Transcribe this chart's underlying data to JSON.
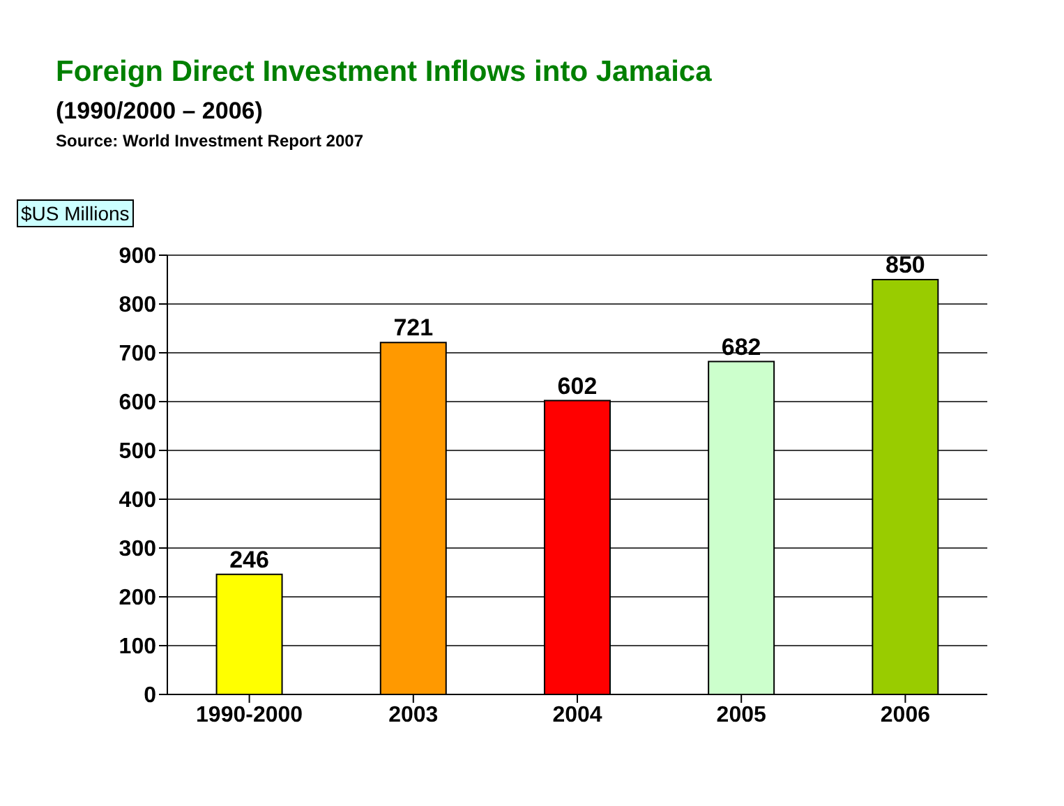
{
  "chart_data": {
    "type": "bar",
    "title": "Foreign Direct Investment Inflows into Jamaica",
    "subtitle": "(1990/2000 – 2006)",
    "annotations": [
      "Source: World Investment Report 2007"
    ],
    "ylabel": "$US Millions",
    "categories": [
      "1990-2000",
      "2003",
      "2004",
      "2005",
      "2006"
    ],
    "values": [
      246,
      721,
      602,
      682,
      850
    ],
    "colors": [
      "#ffff00",
      "#ff9900",
      "#ff0000",
      "#ccffcc",
      "#99cc00"
    ],
    "ylim": [
      0,
      900
    ],
    "yticks": [
      0,
      100,
      200,
      300,
      400,
      500,
      600,
      700,
      800,
      900
    ],
    "grid": "y",
    "data_labels": true,
    "legend": false
  }
}
